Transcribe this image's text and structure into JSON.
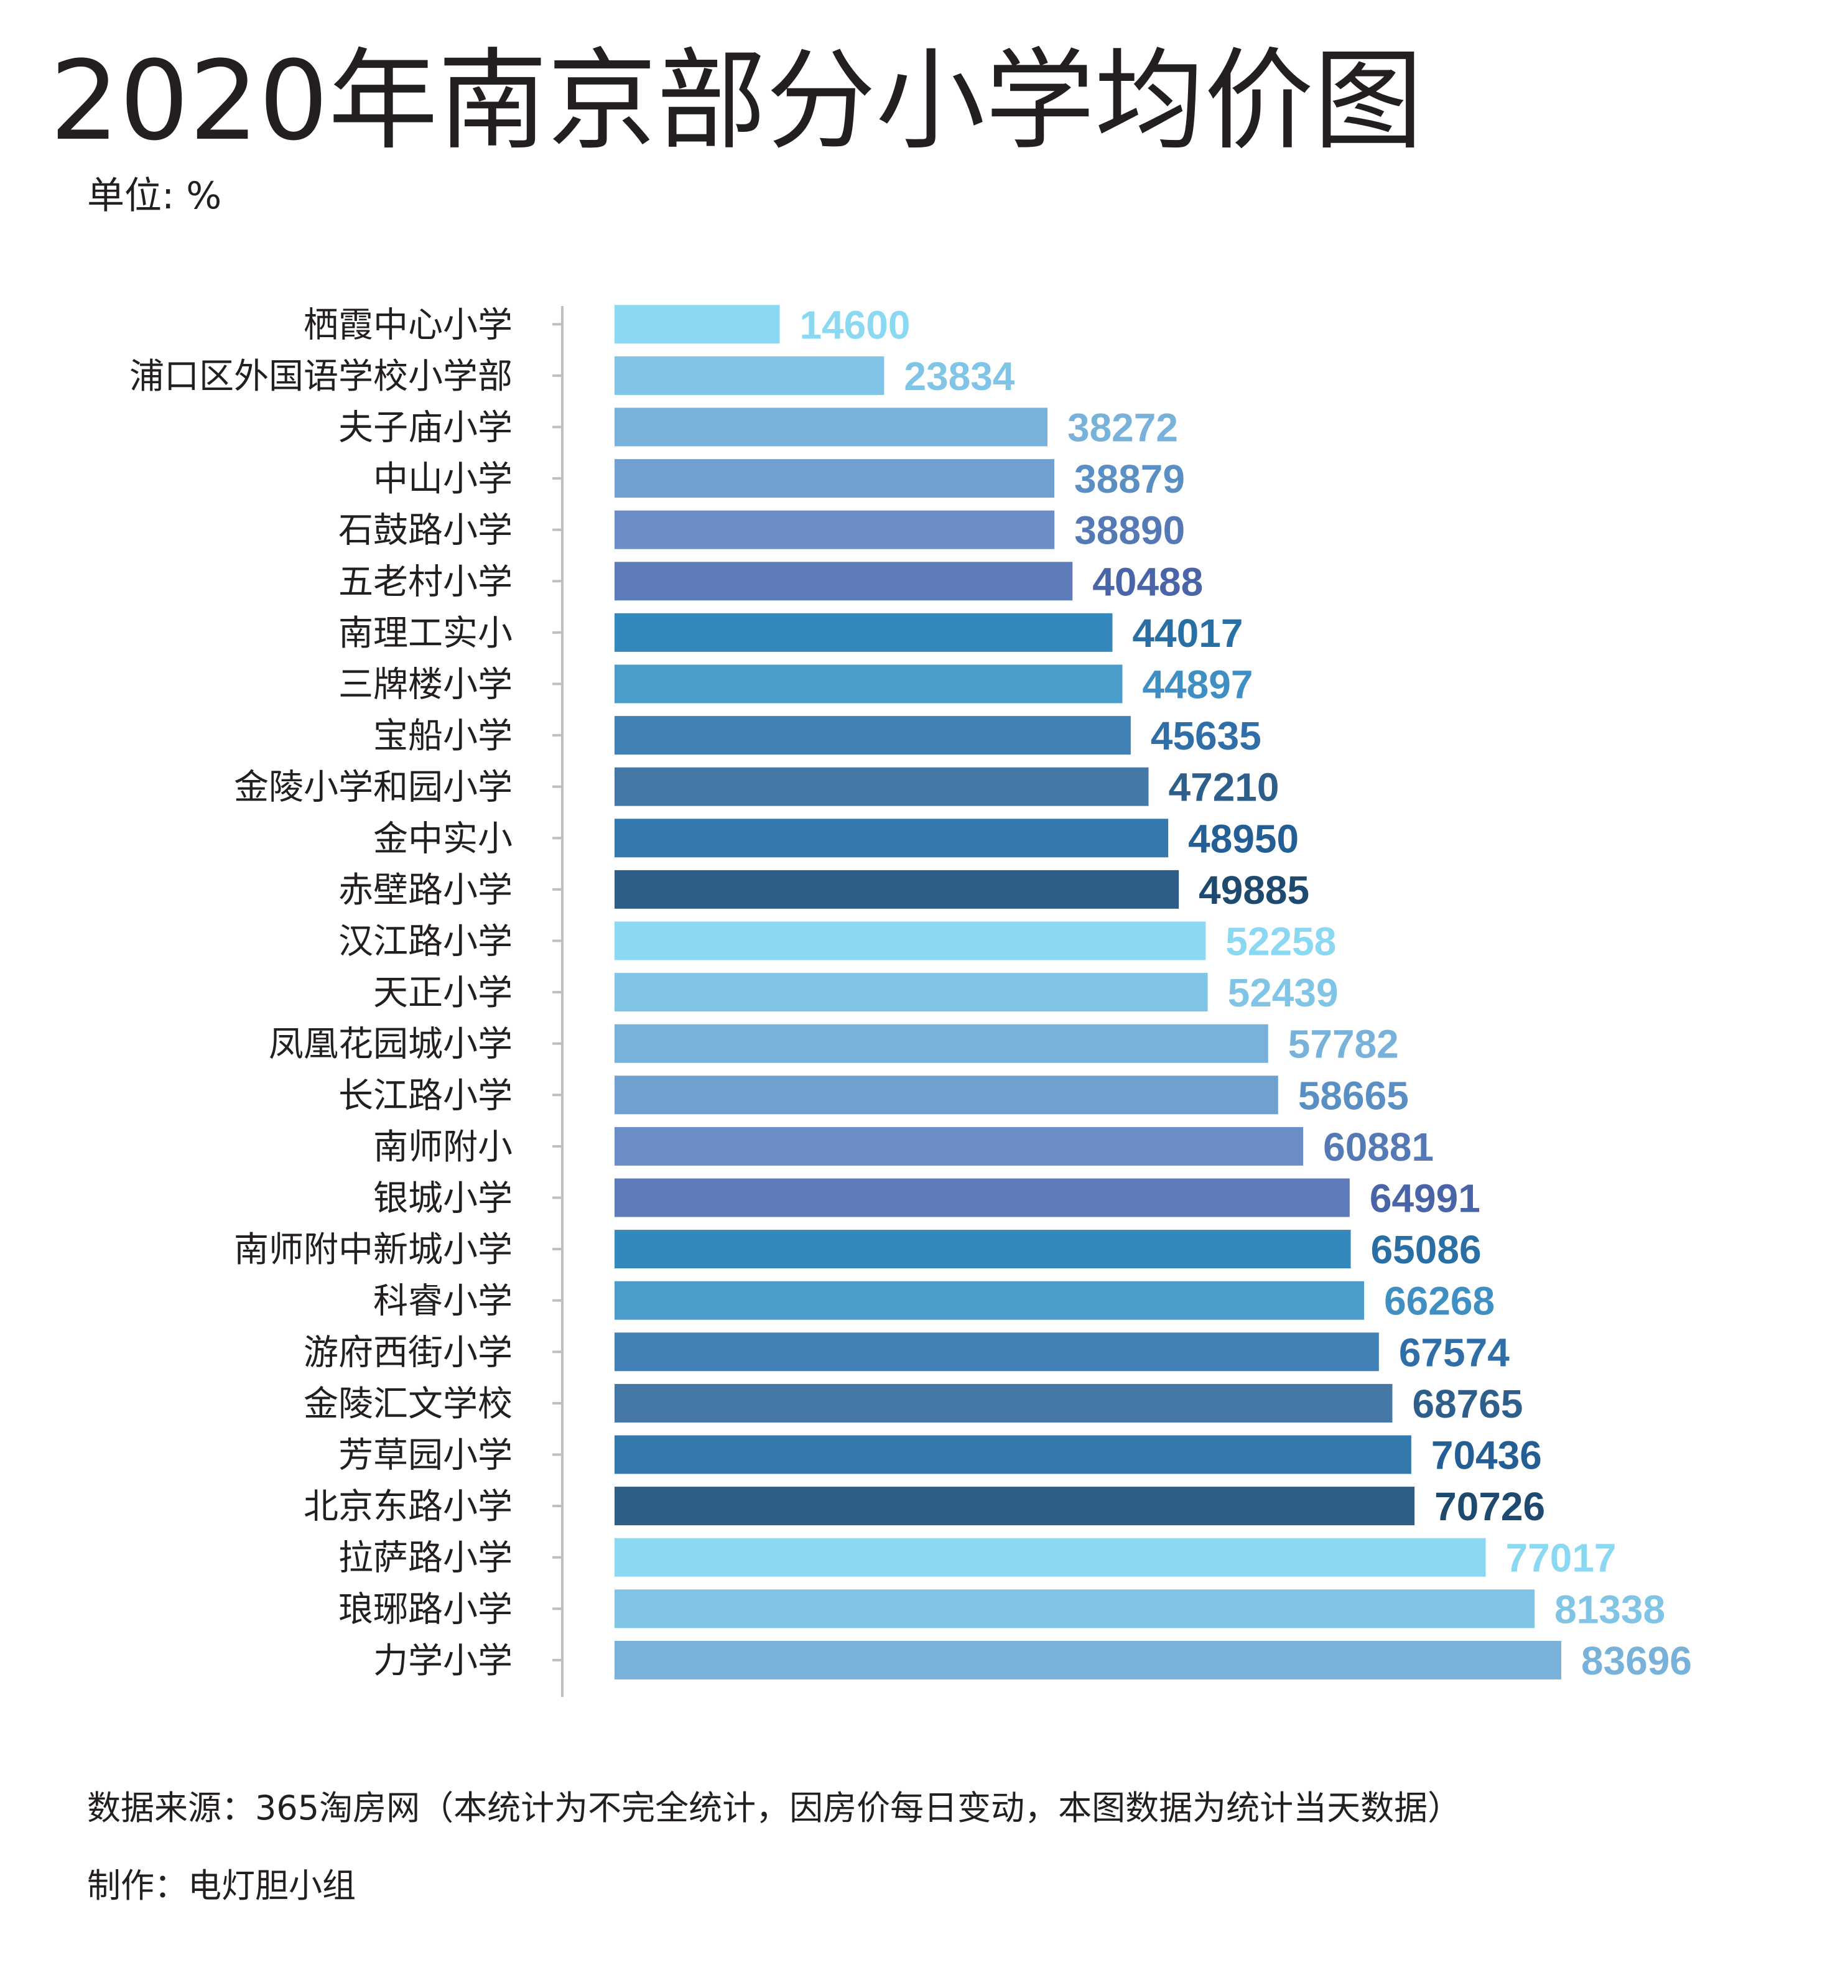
{
  "header": {
    "title": "2020年南京部分小学均价图",
    "unit": "单位: %"
  },
  "footer": {
    "source": "数据来源：365淘房网（本统计为不完全统计，因房价每日变动，本图数据为统计当天数据）",
    "author": "制作：电灯胆小组"
  },
  "chart_data": {
    "type": "bar",
    "orientation": "horizontal",
    "title": "2020年南京部分小学均价图",
    "unit": "单位: %",
    "categories": [
      "栖霞中心小学",
      "浦口区外国语学校小学部",
      "夫子庙小学",
      "中山小学",
      "石鼓路小学",
      "五老村小学",
      "南理工实小",
      "三牌楼小学",
      "宝船小学",
      "金陵小学和园小学",
      "金中实小",
      "赤壁路小学",
      "汉江路小学",
      "天正小学",
      "凤凰花园城小学",
      "长江路小学",
      "南师附小",
      "银城小学",
      "南师附中新城小学",
      "科睿小学",
      "游府西街小学",
      "金陵汇文学校",
      "芳草园小学",
      "北京东路小学",
      "拉萨路小学",
      "琅琊路小学",
      "力学小学"
    ],
    "values": [
      14600,
      23834,
      38272,
      38879,
      38890,
      40488,
      44017,
      44897,
      45635,
      47210,
      48950,
      49885,
      52258,
      52439,
      57782,
      58665,
      60881,
      64991,
      65086,
      66268,
      67574,
      68765,
      70436,
      70726,
      77017,
      81338,
      83696
    ],
    "xlim": [
      0,
      83696
    ],
    "grid": false,
    "legend": "none",
    "bar_colors": [
      "#8ad8f2",
      "#80c4e6",
      "#78b2da",
      "#6fa0cf",
      "#6a8ec5",
      "#5e7bba",
      "#3588bb",
      "#4a9ccb",
      "#4281b6",
      "#4578a6",
      "#3479ae",
      "#2e5e85"
    ],
    "label_colors": [
      "#8ad8f2",
      "#80c4e6",
      "#78b2da",
      "#5a8fc4",
      "#5479b4",
      "#4a64a8",
      "#2a6fa3",
      "#3f8fc2",
      "#2f6ea6",
      "#2d5f8a",
      "#235f95",
      "#1f4a70"
    ]
  }
}
